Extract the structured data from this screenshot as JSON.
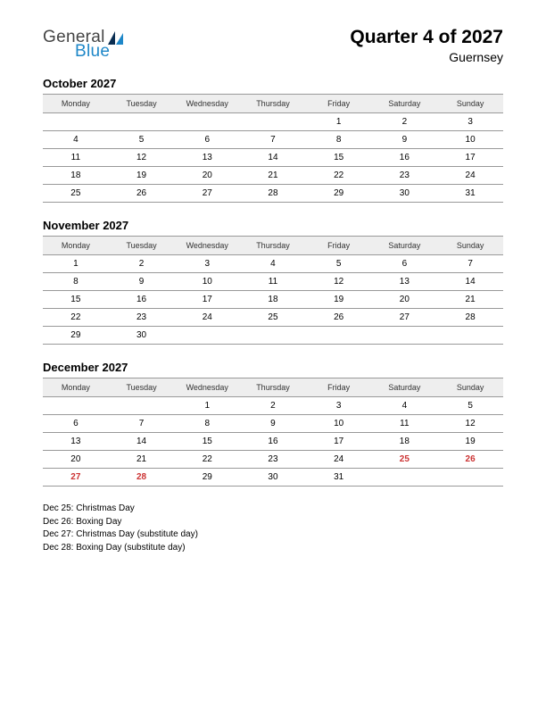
{
  "logo": {
    "line1": "General",
    "line2": "Blue"
  },
  "title": "Quarter 4 of 2027",
  "region": "Guernsey",
  "colors": {
    "logo_gray": "#444444",
    "logo_blue": "#1e87c8",
    "header_bg": "#eeeeee",
    "border": "#999999",
    "holiday": "#cc3333",
    "text": "#000000",
    "background": "#ffffff"
  },
  "typography": {
    "title_fontsize": 21,
    "region_fontsize": 14,
    "month_title_fontsize": 13,
    "weekday_fontsize": 9,
    "day_fontsize": 10,
    "holiday_fontsize": 10,
    "logo_fontsize": 19
  },
  "weekdays": [
    "Monday",
    "Tuesday",
    "Wednesday",
    "Thursday",
    "Friday",
    "Saturday",
    "Sunday"
  ],
  "months": [
    {
      "name": "October 2027",
      "weeks": [
        [
          "",
          "",
          "",
          "",
          "1",
          "2",
          "3"
        ],
        [
          "4",
          "5",
          "6",
          "7",
          "8",
          "9",
          "10"
        ],
        [
          "11",
          "12",
          "13",
          "14",
          "15",
          "16",
          "17"
        ],
        [
          "18",
          "19",
          "20",
          "21",
          "22",
          "23",
          "24"
        ],
        [
          "25",
          "26",
          "27",
          "28",
          "29",
          "30",
          "31"
        ]
      ],
      "holidays": []
    },
    {
      "name": "November 2027",
      "weeks": [
        [
          "1",
          "2",
          "3",
          "4",
          "5",
          "6",
          "7"
        ],
        [
          "8",
          "9",
          "10",
          "11",
          "12",
          "13",
          "14"
        ],
        [
          "15",
          "16",
          "17",
          "18",
          "19",
          "20",
          "21"
        ],
        [
          "22",
          "23",
          "24",
          "25",
          "26",
          "27",
          "28"
        ],
        [
          "29",
          "30",
          "",
          "",
          "",
          "",
          ""
        ]
      ],
      "holidays": []
    },
    {
      "name": "December 2027",
      "weeks": [
        [
          "",
          "",
          "1",
          "2",
          "3",
          "4",
          "5"
        ],
        [
          "6",
          "7",
          "8",
          "9",
          "10",
          "11",
          "12"
        ],
        [
          "13",
          "14",
          "15",
          "16",
          "17",
          "18",
          "19"
        ],
        [
          "20",
          "21",
          "22",
          "23",
          "24",
          "25",
          "26"
        ],
        [
          "27",
          "28",
          "29",
          "30",
          "31",
          "",
          ""
        ]
      ],
      "holidays": [
        "25",
        "26",
        "27",
        "28"
      ]
    }
  ],
  "holiday_list": [
    "Dec 25: Christmas Day",
    "Dec 26: Boxing Day",
    "Dec 27: Christmas Day (substitute day)",
    "Dec 28: Boxing Day (substitute day)"
  ]
}
